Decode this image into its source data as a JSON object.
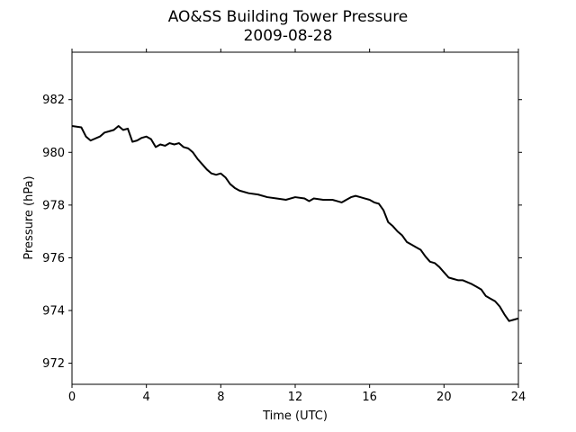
{
  "chart_data": {
    "type": "line",
    "title": "AO&SS Building Tower Pressure",
    "subtitle": "2009-08-28",
    "xlabel": "Time (UTC)",
    "ylabel": "Pressure (hPa)",
    "xlim": [
      0,
      24
    ],
    "ylim": [
      971.2,
      983.8
    ],
    "xticks": [
      0,
      4,
      8,
      12,
      16,
      20,
      24
    ],
    "yticks": [
      972,
      974,
      976,
      978,
      980,
      982
    ],
    "grid": false,
    "legend": "none",
    "line_color": "#000000",
    "series": [
      {
        "x": [
          0.0,
          0.5,
          0.75,
          1.0,
          1.5,
          1.75,
          2.0,
          2.25,
          2.5,
          2.75,
          3.0,
          3.25,
          3.5,
          3.75,
          4.0,
          4.25,
          4.5,
          4.75,
          5.0,
          5.25,
          5.5,
          5.75,
          6.0,
          6.25,
          6.5,
          6.75,
          7.0,
          7.25,
          7.5,
          7.75,
          8.0,
          8.25,
          8.5,
          8.75,
          9.0,
          9.5,
          10.0,
          10.5,
          11.0,
          11.5,
          12.0,
          12.5,
          12.75,
          13.0,
          13.5,
          14.0,
          14.25,
          14.5,
          14.75,
          15.0,
          15.25,
          15.5,
          15.75,
          16.0,
          16.25,
          16.5,
          16.75,
          17.0,
          17.25,
          17.5,
          17.75,
          18.0,
          18.25,
          18.5,
          18.75,
          19.0,
          19.25,
          19.5,
          19.75,
          20.0,
          20.25,
          20.5,
          20.75,
          21.0,
          21.5,
          21.75,
          22.0,
          22.25,
          22.5,
          22.75,
          23.0,
          23.25,
          23.5,
          23.75,
          24.0
        ],
        "y": [
          981.0,
          980.95,
          980.6,
          980.45,
          980.6,
          980.75,
          980.8,
          980.85,
          981.0,
          980.85,
          980.9,
          980.4,
          980.45,
          980.55,
          980.6,
          980.5,
          980.2,
          980.3,
          980.25,
          980.35,
          980.3,
          980.35,
          980.2,
          980.15,
          980.0,
          979.75,
          979.55,
          979.35,
          979.2,
          979.15,
          979.2,
          979.05,
          978.8,
          978.65,
          978.55,
          978.45,
          978.4,
          978.3,
          978.25,
          978.2,
          978.3,
          978.25,
          978.15,
          978.25,
          978.2,
          978.2,
          978.15,
          978.1,
          978.2,
          978.3,
          978.35,
          978.3,
          978.25,
          978.2,
          978.1,
          978.05,
          977.8,
          977.35,
          977.2,
          977.0,
          976.85,
          976.6,
          976.5,
          976.4,
          976.3,
          976.05,
          975.85,
          975.8,
          975.65,
          975.45,
          975.25,
          975.2,
          975.15,
          975.15,
          975.0,
          974.9,
          974.8,
          974.55,
          974.45,
          974.35,
          974.15,
          973.85,
          973.6,
          973.65,
          973.7
        ]
      }
    ]
  }
}
